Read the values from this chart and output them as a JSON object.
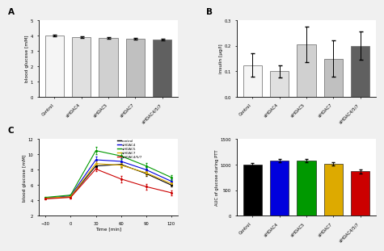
{
  "panel_A": {
    "categories": [
      "Control",
      "siHDAC4",
      "siHDAC5",
      "siHDAC7",
      "siHDAC4/5/7"
    ],
    "values": [
      4.0,
      3.9,
      3.85,
      3.78,
      3.75
    ],
    "errors": [
      0.07,
      0.07,
      0.07,
      0.06,
      0.06
    ],
    "colors": [
      "#f5f5f5",
      "#e0e0e0",
      "#d0d0d0",
      "#c0c0c0",
      "#606060"
    ],
    "ylabel": "blood glucose [mM]",
    "ylim": [
      0,
      5
    ],
    "yticks": [
      0,
      1,
      2,
      3,
      4,
      5
    ],
    "label": "A"
  },
  "panel_B": {
    "categories": [
      "Control",
      "siHDAC4",
      "siHDAC5",
      "siHDAC7",
      "siHDAC4/5/7"
    ],
    "values": [
      0.125,
      0.1,
      0.205,
      0.15,
      0.2
    ],
    "errors": [
      0.045,
      0.025,
      0.07,
      0.07,
      0.055
    ],
    "colors": [
      "#f5f5f5",
      "#e0e0e0",
      "#d0d0d0",
      "#c0c0c0",
      "#606060"
    ],
    "ylabel": "insulin [µg/l]",
    "ylim": [
      0.0,
      0.3
    ],
    "yticks": [
      0.0,
      0.1,
      0.2,
      0.3
    ],
    "label": "B"
  },
  "panel_C_line": {
    "timepoints": [
      -30,
      0,
      30,
      60,
      90,
      120
    ],
    "series": {
      "control": [
        4.3,
        4.5,
        8.5,
        8.7,
        7.5,
        6.0
      ],
      "siHDAC4": [
        4.3,
        4.6,
        9.3,
        9.1,
        8.0,
        6.5
      ],
      "siHDAC5": [
        4.4,
        4.7,
        10.5,
        9.8,
        8.5,
        7.0
      ],
      "siHDAC7": [
        4.3,
        4.5,
        8.8,
        8.6,
        7.6,
        6.2
      ],
      "siHDAC4/5/7": [
        4.2,
        4.4,
        8.1,
        6.8,
        5.8,
        5.0
      ]
    },
    "errors": {
      "control": [
        0.1,
        0.12,
        0.28,
        0.32,
        0.28,
        0.22
      ],
      "siHDAC4": [
        0.1,
        0.12,
        0.38,
        0.38,
        0.32,
        0.28
      ],
      "siHDAC5": [
        0.1,
        0.12,
        0.48,
        0.42,
        0.38,
        0.32
      ],
      "siHDAC7": [
        0.1,
        0.12,
        0.32,
        0.32,
        0.28,
        0.22
      ],
      "siHDAC4/5/7": [
        0.1,
        0.12,
        0.28,
        0.42,
        0.38,
        0.32
      ]
    },
    "colors": {
      "control": "#000000",
      "siHDAC4": "#0000dd",
      "siHDAC5": "#009900",
      "siHDAC7": "#ddaa00",
      "siHDAC4/5/7": "#cc0000"
    },
    "legend_labels": [
      "control",
      "siHDAC4",
      "siHDAC5",
      "siHDAC7",
      "siHDAC4/5/7"
    ],
    "ylabel": "blood glucose [mM]",
    "xlabel": "Time [min]",
    "ylim": [
      2,
      12
    ],
    "yticks": [
      2,
      4,
      6,
      8,
      10,
      12
    ],
    "xticks": [
      -30,
      0,
      30,
      60,
      90,
      120
    ],
    "label": "C"
  },
  "panel_C_bar": {
    "categories": [
      "Control",
      "siHDAC4",
      "siHDAC5",
      "siHDAC7",
      "siHDAC4/5/7"
    ],
    "values": [
      1000,
      1080,
      1080,
      1020,
      870
    ],
    "errors": [
      28,
      32,
      32,
      28,
      38
    ],
    "colors": [
      "#000000",
      "#0000dd",
      "#009900",
      "#ddaa00",
      "#cc0000"
    ],
    "ylabel": "AUC of glucose during PTT",
    "ylim": [
      0,
      1500
    ],
    "yticks": [
      0,
      500,
      1000,
      1500
    ]
  },
  "fig_bg": "#f0f0f0",
  "axes_bg": "#ffffff",
  "edge_color": "#666666"
}
